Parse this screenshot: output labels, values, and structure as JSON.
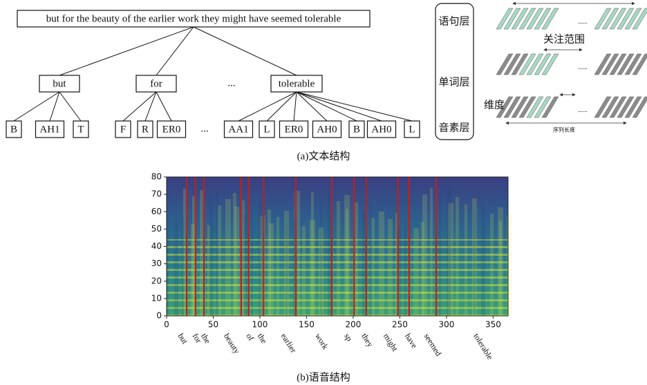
{
  "tree": {
    "root": "but for the beauty of the earlier work they might have seemed tolerable",
    "words": [
      {
        "label": "but",
        "phonemes": [
          "B",
          "AH1",
          "T"
        ]
      },
      {
        "label": "for",
        "phonemes": [
          "F",
          "R",
          "ER0"
        ]
      },
      {
        "label": "tolerable",
        "phonemes": [
          "AA1",
          "L",
          "ER0",
          "AH0",
          "B",
          "AH0",
          "L"
        ]
      }
    ],
    "ellipsis": "..."
  },
  "levels": [
    "语句层",
    "单词层",
    "音素层"
  ],
  "attention_diagram": {
    "span_label": "关注范围",
    "dim_label": "维度",
    "length_label": "序列长度",
    "dots": "......"
  },
  "caption_a": "(a)文本结构",
  "chart_data": {
    "type": "spectrogram",
    "xlim": [
      0,
      366
    ],
    "ylim": [
      0,
      80
    ],
    "xticks": [
      0,
      50,
      100,
      150,
      200,
      250,
      300,
      350
    ],
    "yticks": [
      0,
      10,
      20,
      30,
      40,
      50,
      60,
      70,
      80
    ],
    "boundaries": [
      21.5,
      31,
      40,
      80,
      88,
      104,
      138.5,
      177,
      201,
      214,
      248,
      260,
      289
    ],
    "boundary_color": "#c0201e",
    "words": [
      "but",
      "for",
      "the",
      "beauty",
      "of",
      "the",
      "earlier",
      "work",
      "sp",
      "they",
      "might",
      "have",
      "seemed",
      "tolerable"
    ]
  },
  "caption_b": "(b)语音结构"
}
